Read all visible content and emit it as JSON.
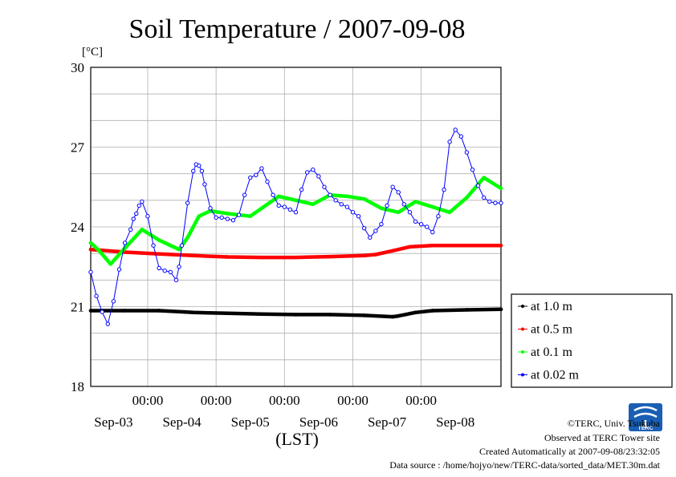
{
  "chart_data": {
    "type": "line",
    "title": "Soil Temperature / 2007-09-08",
    "ylabel_unit": "[°C]",
    "xlabel": "(LST)",
    "ylim": [
      18,
      30
    ],
    "yticks": [
      18,
      21,
      24,
      27,
      30
    ],
    "xlim_hours": [
      0,
      144
    ],
    "time_ticks": [
      "00:00",
      "00:00",
      "00:00",
      "00:00",
      "00:00"
    ],
    "date_labels": [
      "Sep-03",
      "Sep-04",
      "Sep-05",
      "Sep-06",
      "Sep-07",
      "Sep-08"
    ],
    "grid": true,
    "legend_position": "right",
    "series": [
      {
        "name": "at 1.0 m",
        "color": "#000000",
        "x": [
          0,
          12,
          24,
          33,
          36,
          48,
          60,
          72,
          84,
          96,
          106,
          108,
          114,
          120,
          132,
          144
        ],
        "values": [
          20.85,
          20.85,
          20.85,
          20.8,
          20.78,
          20.75,
          20.72,
          20.7,
          20.7,
          20.67,
          20.62,
          20.65,
          20.78,
          20.85,
          20.88,
          20.9
        ]
      },
      {
        "name": "at 0.5 m",
        "color": "#ff0000",
        "x": [
          0,
          12,
          24,
          36,
          48,
          60,
          72,
          84,
          96,
          100,
          106,
          112,
          120,
          132,
          144
        ],
        "values": [
          23.15,
          23.05,
          22.98,
          22.92,
          22.87,
          22.85,
          22.85,
          22.88,
          22.92,
          22.96,
          23.1,
          23.25,
          23.3,
          23.3,
          23.3
        ]
      },
      {
        "name": "at 0.1 m",
        "color": "#00ff00",
        "x": [
          0,
          3,
          7,
          12,
          18,
          24,
          31,
          34,
          38,
          42,
          48,
          56,
          60,
          66,
          72,
          78,
          84,
          90,
          96,
          102,
          108,
          114,
          120,
          126,
          132,
          138,
          144
        ],
        "values": [
          23.4,
          23.1,
          22.6,
          23.2,
          23.9,
          23.5,
          23.15,
          23.6,
          24.4,
          24.6,
          24.5,
          24.4,
          24.7,
          25.15,
          25.0,
          24.85,
          25.2,
          25.15,
          25.05,
          24.7,
          24.55,
          24.95,
          24.75,
          24.55,
          25.1,
          25.85,
          25.45
        ]
      },
      {
        "name": "at 0.02 m",
        "color": "#0000ff",
        "x": [
          0,
          2,
          4,
          6,
          8,
          10,
          12,
          14,
          15,
          16,
          17,
          18,
          20,
          22,
          24,
          26,
          28,
          30,
          31,
          32,
          34,
          36,
          37,
          38,
          39,
          40,
          42,
          44,
          46,
          48,
          50,
          52,
          54,
          56,
          58,
          60,
          62,
          64,
          66,
          68,
          70,
          72,
          74,
          76,
          78,
          80,
          82,
          84,
          86,
          88,
          90,
          92,
          94,
          96,
          98,
          100,
          102,
          104,
          106,
          108,
          110,
          112,
          114,
          116,
          118,
          120,
          122,
          124,
          126,
          128,
          130,
          132,
          134,
          136,
          138,
          140,
          142,
          144
        ],
        "values": [
          22.3,
          21.4,
          20.8,
          20.35,
          21.2,
          22.4,
          23.4,
          23.9,
          24.3,
          24.5,
          24.8,
          24.95,
          24.4,
          23.3,
          22.45,
          22.35,
          22.3,
          22.0,
          22.5,
          23.3,
          24.9,
          26.1,
          26.35,
          26.3,
          26.1,
          25.6,
          24.7,
          24.35,
          24.35,
          24.3,
          24.25,
          24.45,
          25.2,
          25.85,
          25.95,
          26.2,
          25.7,
          25.2,
          24.8,
          24.75,
          24.65,
          24.55,
          25.4,
          26.05,
          26.15,
          25.9,
          25.5,
          25.2,
          25.0,
          24.85,
          24.75,
          24.55,
          24.4,
          23.95,
          23.6,
          23.85,
          24.1,
          24.8,
          25.5,
          25.3,
          24.85,
          24.55,
          24.2,
          24.1,
          24.0,
          23.8,
          24.4,
          25.4,
          27.2,
          27.65,
          27.4,
          26.8,
          26.15,
          25.55,
          25.1,
          24.95,
          24.9,
          24.9
        ]
      }
    ]
  },
  "credits": {
    "line1": "©TERC, Univ. Tsukuba",
    "line2": "Observed at TERC Tower site",
    "line3": "Created Automatically at 2007-09-08/23:32:05",
    "line4": "Data source : /home/hojyo/new/TERC-data/sorted_data/MET.30m.dat"
  },
  "logo": {
    "text": "TERC",
    "color": "#1a5fb4",
    "icon": "terc-logo-icon"
  }
}
